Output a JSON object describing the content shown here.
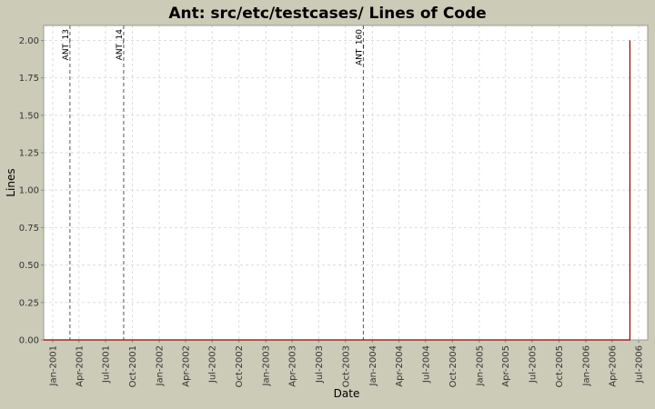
{
  "chart_data": {
    "type": "line",
    "title": "Ant: src/etc/testcases/ Lines of Code",
    "x_label": "Date",
    "y_label": "Lines",
    "x": [
      "2000-12",
      "2006-06",
      "2006-06"
    ],
    "series": [
      {
        "name": "Lines",
        "color": "#990000",
        "values": [
          0,
          0,
          2
        ]
      }
    ],
    "xlim": [
      "2000-12",
      "2006-08"
    ],
    "xticks": [
      {
        "value": "2001-01",
        "label": "Jan-2001"
      },
      {
        "value": "2001-04",
        "label": "Apr-2001"
      },
      {
        "value": "2001-07",
        "label": "Jul-2001"
      },
      {
        "value": "2001-10",
        "label": "Oct-2001"
      },
      {
        "value": "2002-01",
        "label": "Jan-2002"
      },
      {
        "value": "2002-04",
        "label": "Apr-2002"
      },
      {
        "value": "2002-07",
        "label": "Jul-2002"
      },
      {
        "value": "2002-10",
        "label": "Oct-2002"
      },
      {
        "value": "2003-01",
        "label": "Jan-2003"
      },
      {
        "value": "2003-04",
        "label": "Apr-2003"
      },
      {
        "value": "2003-07",
        "label": "Jul-2003"
      },
      {
        "value": "2003-10",
        "label": "Oct-2003"
      },
      {
        "value": "2004-01",
        "label": "Jan-2004"
      },
      {
        "value": "2004-04",
        "label": "Apr-2004"
      },
      {
        "value": "2004-07",
        "label": "Jul-2004"
      },
      {
        "value": "2004-10",
        "label": "Oct-2004"
      },
      {
        "value": "2005-01",
        "label": "Jan-2005"
      },
      {
        "value": "2005-04",
        "label": "Apr-2005"
      },
      {
        "value": "2005-07",
        "label": "Jul-2005"
      },
      {
        "value": "2005-10",
        "label": "Oct-2005"
      },
      {
        "value": "2006-01",
        "label": "Jan-2006"
      },
      {
        "value": "2006-04",
        "label": "Apr-2006"
      },
      {
        "value": "2006-07",
        "label": "Jul-2006"
      }
    ],
    "ylim": [
      0,
      2.1
    ],
    "yticks": [
      {
        "value": 0,
        "label": "0.00"
      },
      {
        "value": 0.25,
        "label": "0.25"
      },
      {
        "value": 0.5,
        "label": "0.50"
      },
      {
        "value": 0.75,
        "label": "0.75"
      },
      {
        "value": 1,
        "label": "1.00"
      },
      {
        "value": 1.25,
        "label": "1.25"
      },
      {
        "value": 1.5,
        "label": "1.50"
      },
      {
        "value": 1.75,
        "label": "1.75"
      },
      {
        "value": 2,
        "label": "2.00"
      }
    ],
    "grid": true,
    "markers": [
      {
        "x": "2001-03",
        "label": "ANT_13"
      },
      {
        "x": "2001-09",
        "label": "ANT_14"
      },
      {
        "x": "2003-12",
        "label": "ANT_160"
      }
    ]
  }
}
